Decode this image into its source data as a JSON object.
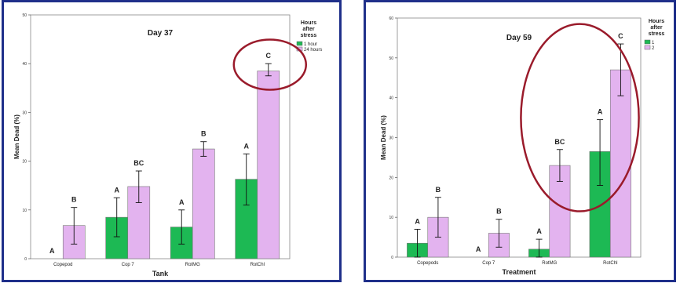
{
  "colors": {
    "series1": "#1db954",
    "series2": "#e3b3ef",
    "highlight": "#9a1b2b",
    "frame": "#1f2f8a"
  },
  "chart_data": [
    {
      "type": "bar",
      "title": "Day 37",
      "xlabel": "Tank",
      "ylabel": "Mean Dead (%)",
      "ylim": [
        0,
        50
      ],
      "yticks": [
        0,
        10,
        20,
        30,
        40,
        50
      ],
      "yticklabels": [
        "0",
        "10",
        "20",
        "30",
        "40",
        "50"
      ],
      "categories": [
        "Copepod",
        "Cop 7",
        "RotMG",
        "RotChl"
      ],
      "legend": {
        "title_lines": [
          "Hours",
          "after",
          "stress"
        ],
        "labels": [
          "1 hour",
          "24 hours"
        ],
        "position": "top-right"
      },
      "series": [
        {
          "name": "1 hour",
          "values": [
            0,
            8.5,
            6.5,
            16.3
          ],
          "err_low": [
            0,
            4.5,
            3.0,
            11.0
          ],
          "err_high": [
            0,
            12.5,
            10.0,
            21.5
          ],
          "letters": [
            "A",
            "A",
            "A",
            "A"
          ]
        },
        {
          "name": "24 hours",
          "values": [
            6.8,
            14.8,
            22.5,
            38.5
          ],
          "err_low": [
            3.0,
            11.5,
            21.0,
            37.5
          ],
          "err_high": [
            10.5,
            18.0,
            24.0,
            40.0
          ],
          "letters": [
            "B",
            "BC",
            "B",
            "C"
          ]
        }
      ],
      "highlight": {
        "category": 3,
        "series": 1
      }
    },
    {
      "type": "bar",
      "title": "Day 59",
      "xlabel": "Treatment",
      "ylabel": "Mean Dead (%)",
      "ylim": [
        0,
        60
      ],
      "yticks": [
        0,
        10,
        20,
        30,
        40,
        50,
        60
      ],
      "yticklabels": [
        "0",
        "10",
        "20",
        "30",
        "40",
        "50",
        "60"
      ],
      "categories": [
        "Copepods",
        "Cop 7",
        "RotMG",
        "RotChl"
      ],
      "legend": {
        "title_lines": [
          "Hours",
          "after",
          "stress"
        ],
        "labels": [
          "1",
          "2"
        ],
        "position": "top-right"
      },
      "series": [
        {
          "name": "1",
          "values": [
            3.5,
            0,
            2.0,
            26.5
          ],
          "err_low": [
            0,
            0,
            0,
            18.0
          ],
          "err_high": [
            7.0,
            0,
            4.5,
            34.5
          ],
          "letters": [
            "A",
            "A",
            "A",
            "A"
          ]
        },
        {
          "name": "2",
          "values": [
            10.0,
            6.0,
            23.0,
            47.0
          ],
          "err_low": [
            5.0,
            2.5,
            19.0,
            40.5
          ],
          "err_high": [
            15.0,
            9.5,
            27.0,
            53.5
          ],
          "letters": [
            "B",
            "B",
            "BC",
            "C"
          ]
        }
      ],
      "highlight": {
        "categories": [
          2,
          3
        ]
      }
    }
  ]
}
